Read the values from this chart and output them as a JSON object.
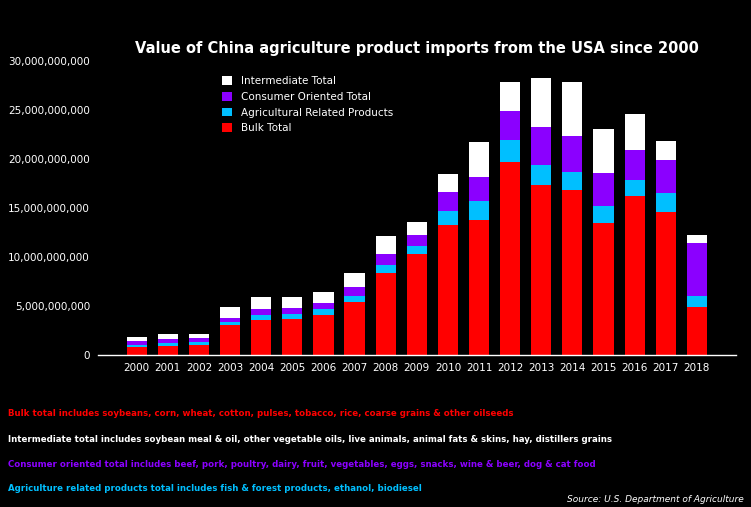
{
  "title": "Value of China agriculture product imports from the USA since 2000",
  "background_color": "#000000",
  "text_color": "#ffffff",
  "years": [
    2000,
    2001,
    2002,
    2003,
    2004,
    2005,
    2006,
    2007,
    2008,
    2009,
    2010,
    2011,
    2012,
    2013,
    2014,
    2015,
    2016,
    2017,
    2018
  ],
  "bulk": [
    800000000,
    950000000,
    1050000000,
    3100000000,
    3600000000,
    3700000000,
    4100000000,
    5400000000,
    8400000000,
    10300000000,
    13300000000,
    13800000000,
    19700000000,
    17300000000,
    16800000000,
    13500000000,
    16200000000,
    14600000000,
    4900000000
  ],
  "agri_related": [
    250000000,
    300000000,
    280000000,
    280000000,
    480000000,
    480000000,
    550000000,
    650000000,
    750000000,
    850000000,
    1400000000,
    1900000000,
    2200000000,
    2100000000,
    1900000000,
    1700000000,
    1600000000,
    1900000000,
    1100000000
  ],
  "consumer": [
    350000000,
    420000000,
    370000000,
    420000000,
    620000000,
    620000000,
    650000000,
    900000000,
    1100000000,
    1100000000,
    1900000000,
    2400000000,
    3000000000,
    3900000000,
    3600000000,
    3400000000,
    3100000000,
    3400000000,
    5400000000
  ],
  "intermediate": [
    450000000,
    480000000,
    450000000,
    1100000000,
    1200000000,
    1100000000,
    1100000000,
    1400000000,
    1900000000,
    1300000000,
    1900000000,
    3600000000,
    2900000000,
    5000000000,
    5500000000,
    4400000000,
    3700000000,
    1900000000,
    800000000
  ],
  "bulk_color": "#ff0000",
  "agri_color": "#00bfff",
  "consumer_color": "#8b00ff",
  "intermediate_color": "#ffffff",
  "legend_labels": [
    "Intermediate Total",
    "Consumer Oriented Total",
    "Agricultural Related Products",
    "Bulk Total"
  ],
  "legend_colors": [
    "#ffffff",
    "#8b00ff",
    "#00bfff",
    "#ff0000"
  ],
  "footer_lines": [
    {
      "text": "Bulk total includes soybeans, corn, wheat, cotton, pulses, tobacco, rice, coarse grains & other oilseeds",
      "color": "#ff0000"
    },
    {
      "text": "Intermediate total includes soybean meal & oil, other vegetable oils, live animals, animal fats & skins, hay, distillers grains",
      "color": "#ffffff"
    },
    {
      "text": "Consumer oriented total includes beef, pork, poultry, dairy, fruit, vegetables, eggs, snacks, wine & beer, dog & cat food",
      "color": "#8b00ff"
    },
    {
      "text": "Agriculture related products total includes fish & forest products, ethanol, biodiesel",
      "color": "#00bfff"
    }
  ],
  "source_text": "Source: U.S. Department of Agriculture",
  "ylim": [
    0,
    30000000000
  ]
}
